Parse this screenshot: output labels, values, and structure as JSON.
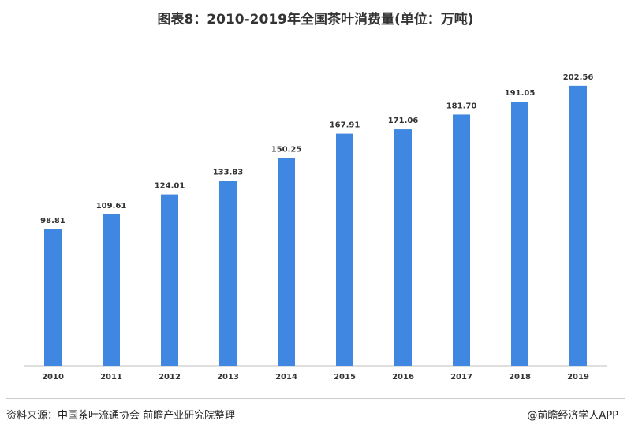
{
  "chart_data": {
    "type": "bar",
    "title": "图表8：2010-2019年全国茶叶消费量(单位：万吨)",
    "categories": [
      "2010",
      "2011",
      "2012",
      "2013",
      "2014",
      "2015",
      "2016",
      "2017",
      "2018",
      "2019"
    ],
    "values": [
      98.81,
      109.61,
      124.01,
      133.83,
      150.25,
      167.91,
      171.06,
      181.7,
      191.05,
      202.56
    ],
    "data_labels": [
      "98.81",
      "109.61",
      "124.01",
      "133.83",
      "150.25",
      "167.91",
      "171.06",
      "181.70",
      "191.05",
      "202.56"
    ],
    "ylim": [
      0,
      220
    ],
    "grid": false,
    "bar_color": "#3f87e0"
  },
  "footer": {
    "source": "资料来源：中国茶叶流通协会 前瞻产业研究院整理",
    "brand": "@前瞻经济学人APP"
  }
}
